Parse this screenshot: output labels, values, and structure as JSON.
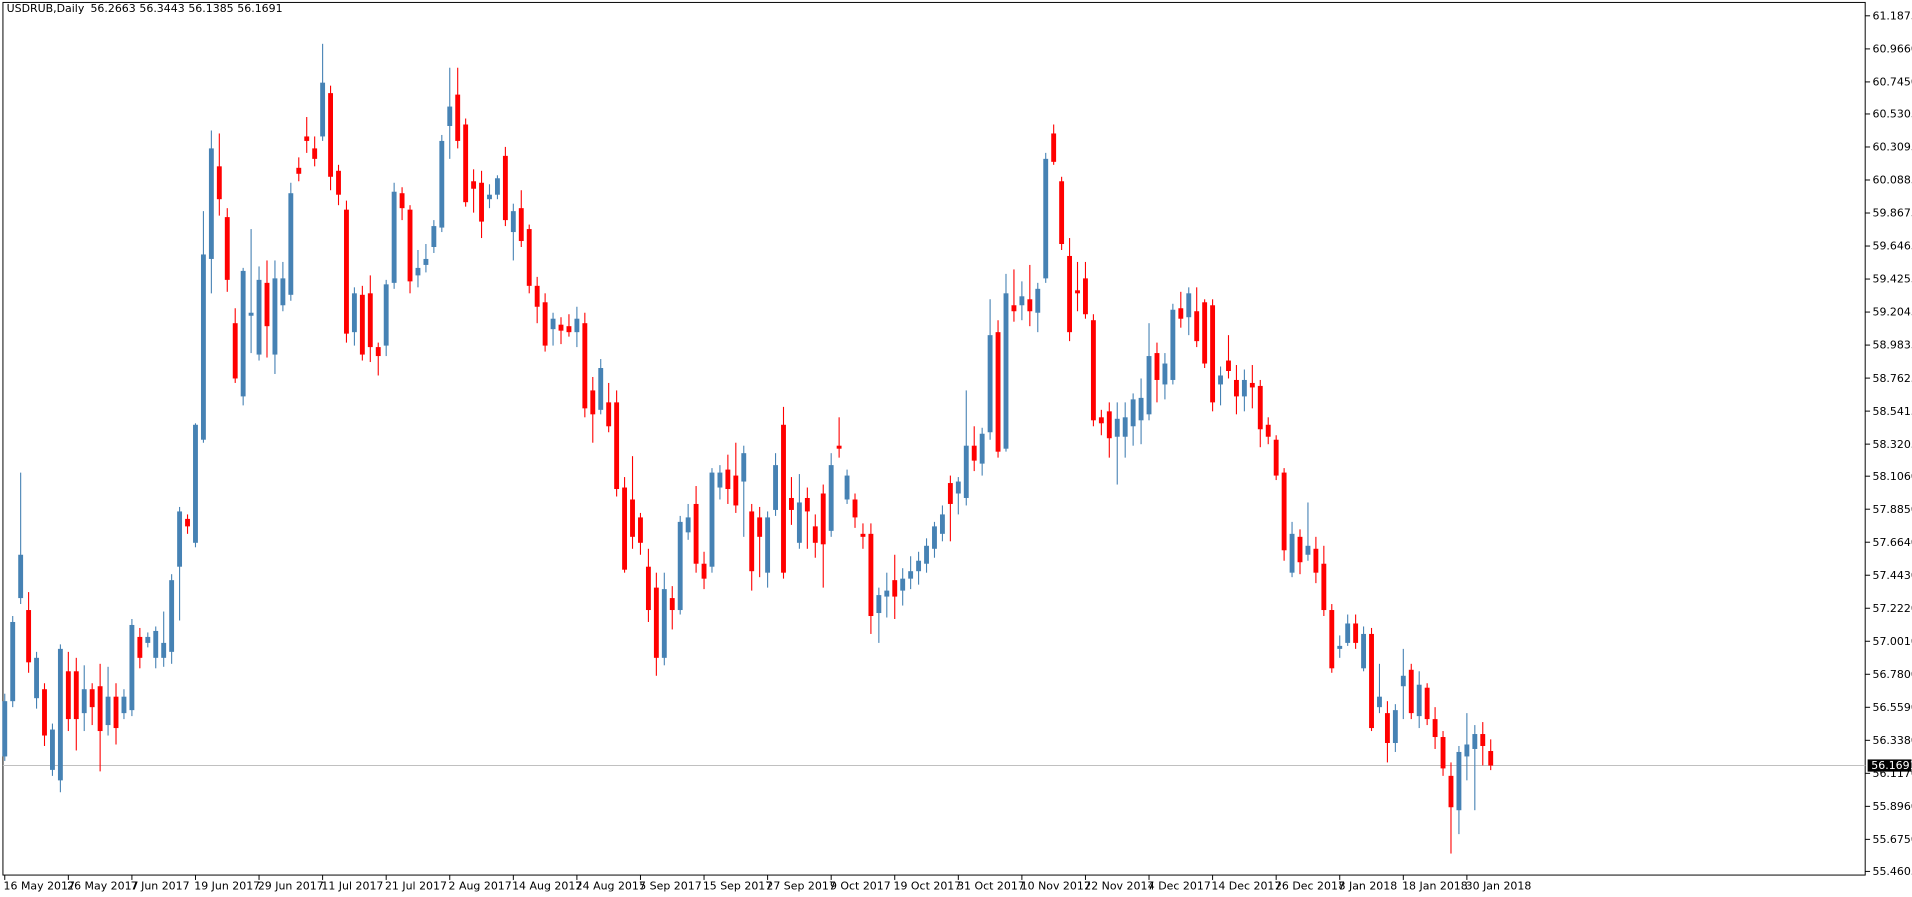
{
  "chart_data": {
    "type": "candlestick",
    "title": "USDRUB,Daily",
    "header_values": [
      56.2663,
      56.3443,
      56.1385,
      56.1691
    ],
    "up_color": "#4682b4",
    "down_color": "#ff0000",
    "current_price": 56.1691,
    "current_price_color": "#c0c0c0",
    "ylim": [
      55.436,
      61.277
    ],
    "yticks": [
      61.1875,
      {
        "value": 60.966,
        "label": "60.9660"
      },
      {
        "value": 60.745,
        "label": "60.7450"
      },
      60.5305,
      60.3095,
      60.0885,
      59.8675,
      59.6465,
      59.4255,
      59.2045,
      58.9835,
      58.7625,
      58.5415,
      58.3205,
      {
        "value": 58.106,
        "label": "58.1060"
      },
      {
        "value": 57.885,
        "label": "57.8850"
      },
      {
        "value": 57.664,
        "label": "57.6640"
      },
      {
        "value": 57.443,
        "label": "57.4430"
      },
      {
        "value": 57.222,
        "label": "57.2220"
      },
      {
        "value": 57.001,
        "label": "57.0010"
      },
      {
        "value": 56.78,
        "label": "56.7800"
      },
      {
        "value": 56.559,
        "label": "56.5590"
      },
      {
        "value": 56.338,
        "label": "56.3380"
      },
      {
        "value": 56.117,
        "label": "56.1170"
      },
      {
        "value": 55.896,
        "label": "55.8960"
      },
      {
        "value": 55.675,
        "label": "55.6750"
      },
      55.4605
    ],
    "categories": [
      "16 May 2017",
      null,
      null,
      null,
      null,
      null,
      null,
      null,
      "26 May 2017",
      null,
      null,
      null,
      null,
      null,
      null,
      null,
      "7 Jun 2017",
      null,
      null,
      null,
      null,
      null,
      null,
      null,
      "19 Jun 2017",
      null,
      null,
      null,
      null,
      null,
      null,
      null,
      "29 Jun 2017",
      null,
      null,
      null,
      null,
      null,
      null,
      null,
      "11 Jul 2017",
      null,
      null,
      null,
      null,
      null,
      null,
      null,
      "21 Jul 2017",
      null,
      null,
      null,
      null,
      null,
      null,
      null,
      "2 Aug 2017",
      null,
      null,
      null,
      null,
      null,
      null,
      null,
      "14 Aug 2017",
      null,
      null,
      null,
      null,
      null,
      null,
      null,
      "24 Aug 2017",
      null,
      null,
      null,
      null,
      null,
      null,
      null,
      "5 Sep 2017",
      null,
      null,
      null,
      null,
      null,
      null,
      null,
      "15 Sep 2017",
      null,
      null,
      null,
      null,
      null,
      null,
      null,
      "27 Sep 2017",
      null,
      null,
      null,
      null,
      null,
      null,
      null,
      "9 Oct 2017",
      null,
      null,
      null,
      null,
      null,
      null,
      null,
      "19 Oct 2017",
      null,
      null,
      null,
      null,
      null,
      null,
      null,
      "31 Oct 2017",
      null,
      null,
      null,
      null,
      null,
      null,
      null,
      "10 Nov 2017",
      null,
      null,
      null,
      null,
      null,
      null,
      null,
      "22 Nov 2017",
      null,
      null,
      null,
      null,
      null,
      null,
      null,
      "4 Dec 2017",
      null,
      null,
      null,
      null,
      null,
      null,
      null,
      "14 Dec 2017",
      null,
      null,
      null,
      null,
      null,
      null,
      null,
      "26 Dec 2017",
      null,
      null,
      null,
      null,
      null,
      null,
      null,
      "8 Jan 2018",
      null,
      null,
      null,
      null,
      null,
      null,
      null,
      "18 Jan 2018",
      null,
      null,
      null,
      null,
      null,
      null,
      null,
      "30 Jan 2018",
      null,
      null,
      null
    ],
    "open": [
      56.23,
      56.6,
      57.29,
      57.21,
      56.62,
      56.68,
      56.14,
      56.07,
      56.8,
      56.8,
      56.52,
      56.68,
      56.7,
      56.44,
      56.63,
      56.52,
      56.54,
      57.03,
      56.99,
      56.89,
      56.89,
      56.93,
      57.5,
      57.82,
      57.66,
      58.35,
      59.56,
      60.18,
      59.84,
      59.13,
      58.64,
      59.18,
      58.92,
      59.4,
      58.92,
      59.25,
      59.32,
      60.17,
      60.38,
      60.3,
      60.38,
      60.67,
      60.15,
      59.89,
      59.07,
      59.32,
      59.33,
      58.97,
      58.98,
      59.4,
      60.0,
      59.89,
      59.45,
      59.52,
      59.64,
      59.77,
      60.45,
      60.66,
      60.46,
      60.08,
      60.07,
      59.96,
      59.99,
      60.25,
      59.74,
      59.9,
      59.76,
      59.38,
      59.27,
      59.09,
      59.12,
      59.11,
      59.07,
      59.13,
      58.68,
      58.55,
      58.6,
      58.6,
      58.03,
      57.95,
      57.83,
      57.5,
      57.36,
      56.89,
      57.29,
      57.21,
      57.73,
      57.92,
      57.52,
      57.5,
      58.03,
      58.15,
      58.11,
      58.07,
      57.87,
      57.83,
      57.46,
      57.88,
      58.45,
      57.96,
      57.66,
      57.96,
      57.77,
      57.99,
      57.74,
      58.31,
      57.95,
      57.95,
      57.72,
      57.72,
      57.19,
      57.3,
      57.41,
      57.34,
      57.42,
      57.47,
      57.52,
      57.62,
      57.72,
      58.06,
      57.99,
      57.96,
      58.31,
      58.19,
      58.4,
      59.07,
      58.29,
      59.25,
      59.25,
      59.29,
      59.2,
      59.43,
      60.4,
      60.08,
      59.58,
      59.35,
      59.43,
      59.15,
      58.5,
      58.54,
      58.37,
      58.37,
      58.44,
      58.48,
      58.52,
      58.93,
      58.72,
      58.75,
      59.23,
      59.17,
      59.21,
      59.27,
      59.25,
      58.72,
      58.88,
      58.75,
      58.64,
      58.73,
      58.71,
      58.45,
      58.35,
      58.13,
      57.46,
      57.7,
      57.58,
      57.62,
      57.52,
      57.21,
      56.95,
      56.99,
      57.12,
      56.82,
      57.05,
      56.56,
      56.52,
      56.32,
      56.7,
      56.81,
      56.5,
      56.69,
      56.48,
      56.36,
      56.1,
      55.87,
      56.23,
      56.28,
      56.38,
      56.2663
    ],
    "high": [
      56.65,
      57.17,
      58.13,
      57.33,
      56.93,
      56.72,
      56.45,
      56.98,
      56.93,
      56.89,
      56.84,
      56.72,
      56.85,
      56.83,
      56.72,
      56.68,
      57.15,
      57.09,
      57.06,
      57.1,
      57.2,
      57.45,
      57.9,
      57.85,
      58.46,
      59.88,
      60.42,
      60.4,
      59.9,
      59.23,
      59.5,
      59.76,
      59.51,
      59.55,
      59.55,
      59.54,
      60.07,
      60.24,
      60.51,
      60.38,
      61.0,
      60.72,
      60.19,
      59.95,
      59.37,
      59.38,
      59.45,
      59.0,
      59.42,
      60.07,
      60.04,
      59.92,
      59.62,
      59.66,
      59.82,
      60.39,
      60.84,
      60.84,
      60.5,
      60.16,
      60.15,
      60.06,
      60.12,
      60.31,
      59.93,
      60.02,
      59.79,
      59.44,
      59.33,
      59.2,
      59.17,
      59.19,
      59.24,
      59.2,
      58.77,
      58.89,
      58.73,
      58.68,
      58.1,
      58.24,
      57.86,
      57.62,
      57.46,
      57.46,
      57.37,
      57.84,
      57.92,
      58.04,
      57.6,
      58.16,
      58.18,
      58.25,
      58.33,
      58.31,
      57.92,
      57.9,
      57.87,
      58.26,
      58.57,
      58.1,
      58.12,
      58.03,
      57.85,
      58.05,
      58.26,
      58.5,
      58.15,
      57.99,
      57.79,
      57.79,
      57.36,
      57.46,
      57.58,
      57.49,
      57.57,
      57.6,
      57.69,
      57.8,
      57.91,
      58.11,
      58.1,
      58.68,
      58.44,
      58.43,
      59.29,
      59.15,
      59.46,
      59.49,
      59.41,
      59.52,
      59.4,
      60.27,
      60.46,
      60.11,
      59.7,
      59.54,
      59.54,
      59.19,
      58.55,
      58.6,
      58.6,
      58.6,
      58.66,
      58.76,
      59.13,
      59.0,
      58.93,
      59.26,
      59.34,
      59.37,
      59.37,
      59.29,
      59.29,
      58.84,
      59.05,
      58.85,
      58.82,
      58.85,
      58.75,
      58.5,
      58.38,
      58.16,
      57.8,
      57.75,
      57.93,
      57.7,
      57.64,
      57.25,
      57.04,
      57.18,
      57.18,
      57.1,
      57.09,
      56.85,
      56.6,
      56.58,
      56.95,
      56.85,
      56.8,
      56.72,
      56.56,
      56.4,
      56.19,
      56.3,
      56.52,
      56.44,
      56.46,
      56.3443
    ],
    "low": [
      56.2,
      56.56,
      57.25,
      56.79,
      56.55,
      56.3,
      56.1,
      55.99,
      56.4,
      56.27,
      56.4,
      56.44,
      56.13,
      56.37,
      56.31,
      56.48,
      56.5,
      56.82,
      56.96,
      56.82,
      56.83,
      56.85,
      57.14,
      57.72,
      57.63,
      58.33,
      59.33,
      59.85,
      59.34,
      58.73,
      58.58,
      58.93,
      58.88,
      58.9,
      58.79,
      59.21,
      59.28,
      60.08,
      60.27,
      60.18,
      60.35,
      60.02,
      59.92,
      59.0,
      58.98,
      58.88,
      58.87,
      58.78,
      58.91,
      59.36,
      59.82,
      59.33,
      59.37,
      59.47,
      59.6,
      59.74,
      60.23,
      60.3,
      59.91,
      59.87,
      59.7,
      59.9,
      59.96,
      59.78,
      59.55,
      59.64,
      59.33,
      59.13,
      58.94,
      58.98,
      58.99,
      59.04,
      58.97,
      58.5,
      58.33,
      58.52,
      58.4,
      57.97,
      57.46,
      57.62,
      57.58,
      57.13,
      56.77,
      56.84,
      57.08,
      57.18,
      57.68,
      57.46,
      57.35,
      57.46,
      57.95,
      57.92,
      57.86,
      57.7,
      57.34,
      57.43,
      57.36,
      57.84,
      57.42,
      57.78,
      57.62,
      57.62,
      57.56,
      57.36,
      57.7,
      58.23,
      57.92,
      57.76,
      57.62,
      57.05,
      56.99,
      57.16,
      57.15,
      57.24,
      57.35,
      57.38,
      57.46,
      57.56,
      57.67,
      57.67,
      57.85,
      57.91,
      58.14,
      58.11,
      58.35,
      58.23,
      58.27,
      59.14,
      59.15,
      59.11,
      59.07,
      59.4,
      60.19,
      59.62,
      59.01,
      59.21,
      59.16,
      58.44,
      58.38,
      58.23,
      58.05,
      58.23,
      58.31,
      58.32,
      58.48,
      58.6,
      58.62,
      58.72,
      59.1,
      59.05,
      58.97,
      58.83,
      58.54,
      58.58,
      58.76,
      58.52,
      58.54,
      58.56,
      58.3,
      58.32,
      58.08,
      57.54,
      57.43,
      57.45,
      57.54,
      57.39,
      57.17,
      56.79,
      56.89,
      56.97,
      56.95,
      56.8,
      56.4,
      56.52,
      56.19,
      56.26,
      56.48,
      56.48,
      56.42,
      56.44,
      56.28,
      56.1,
      55.58,
      55.71,
      56.07,
      55.87,
      56.17,
      56.1385
    ],
    "close": [
      56.6,
      57.13,
      57.58,
      56.86,
      56.89,
      56.37,
      56.41,
      56.95,
      56.48,
      56.48,
      56.68,
      56.56,
      56.4,
      56.63,
      56.42,
      56.63,
      57.11,
      56.89,
      57.03,
      57.07,
      56.99,
      57.41,
      57.87,
      57.77,
      58.45,
      59.59,
      60.3,
      59.96,
      59.42,
      58.76,
      59.48,
      59.2,
      59.42,
      59.11,
      59.43,
      59.43,
      60.0,
      60.13,
      60.35,
      60.23,
      60.74,
      60.11,
      59.99,
      59.06,
      59.33,
      58.92,
      58.97,
      58.91,
      59.39,
      60.01,
      59.9,
      59.41,
      59.5,
      59.56,
      59.78,
      60.35,
      60.58,
      60.35,
      59.94,
      60.03,
      59.81,
      59.99,
      60.1,
      59.82,
      59.88,
      59.68,
      59.38,
      59.24,
      58.98,
      59.16,
      59.08,
      59.07,
      59.16,
      58.56,
      58.52,
      58.83,
      58.44,
      58.02,
      57.48,
      57.7,
      57.66,
      57.21,
      56.89,
      57.35,
      57.21,
      57.8,
      57.83,
      57.52,
      57.42,
      58.13,
      58.13,
      58.02,
      57.91,
      58.26,
      57.47,
      57.7,
      57.83,
      58.18,
      57.46,
      57.88,
      57.93,
      57.87,
      57.66,
      57.65,
      58.18,
      58.29,
      58.11,
      57.83,
      57.7,
      57.17,
      57.31,
      57.34,
      57.3,
      57.42,
      57.47,
      57.54,
      57.64,
      57.77,
      57.85,
      57.92,
      58.07,
      58.31,
      58.21,
      58.39,
      59.05,
      58.27,
      59.33,
      59.21,
      59.31,
      59.21,
      59.36,
      60.23,
      60.21,
      59.66,
      59.07,
      59.33,
      59.19,
      58.48,
      58.46,
      58.36,
      58.49,
      58.5,
      58.62,
      58.63,
      58.91,
      58.75,
      58.86,
      59.22,
      59.16,
      59.33,
      59.01,
      58.86,
      58.6,
      58.78,
      58.81,
      58.64,
      58.75,
      58.7,
      58.42,
      58.37,
      58.11,
      57.61,
      57.72,
      57.53,
      57.64,
      57.46,
      57.21,
      56.82,
      56.97,
      57.12,
      56.99,
      57.05,
      56.42,
      56.63,
      56.32,
      56.54,
      56.77,
      56.52,
      56.71,
      56.48,
      56.36,
      56.15,
      55.89,
      56.26,
      56.31,
      56.38,
      56.3,
      56.1691
    ]
  }
}
